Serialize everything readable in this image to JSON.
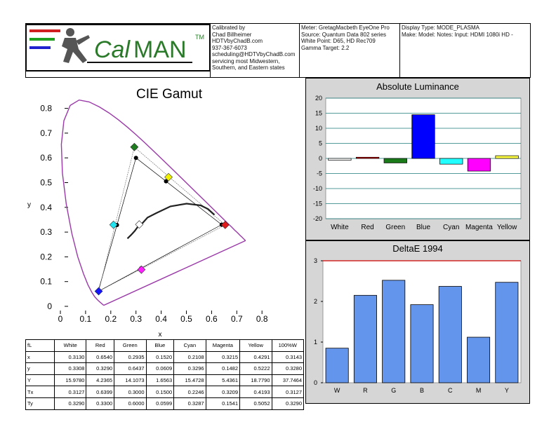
{
  "header": {
    "logo_text_cal": "Cal",
    "logo_text_man": "MAN",
    "logo_tm": "TM",
    "calibrated_by": "Calibrated by\nChad Billheimer\nHDTVbyChadB.com\n937-367-6073\nscheduling@HDTVbyChadB.com\nservicing most Midwestern,\nSouthern, and Eastern states",
    "meter_info": "Meter: GretagMacbeth EyeOne Pro\nSource: Quantum Data 802 series\nWhite Point: D65, HD Rec709\nGamma Target: 2.2",
    "display_info": "Display Type: MODE_PLASMA\nMake: Model: Notes: Input: HDMI 1080i HD   -"
  },
  "cie_chart": {
    "title": "CIE Gamut",
    "x_label": "x",
    "y_label": "y",
    "x_ticks": [
      "0",
      "0.1",
      "0.2",
      "0.3",
      "0.4",
      "0.5",
      "0.6",
      "0.7",
      "0.8"
    ],
    "y_ticks": [
      "0",
      "0.1",
      "0.2",
      "0.3",
      "0.4",
      "0.5",
      "0.6",
      "0.7",
      "0.8"
    ]
  },
  "lum_chart": {
    "title": "Absolute Luminance",
    "y_ticks": [
      "20",
      "15",
      "10",
      "5",
      "0",
      "-5",
      "-10",
      "-15",
      "-20"
    ],
    "categories": [
      "White",
      "Red",
      "Green",
      "Blue",
      "Cyan",
      "Magenta",
      "Yellow"
    ]
  },
  "de_chart": {
    "title": "DeltaE 1994",
    "y_ticks": [
      "3",
      "2",
      "1",
      "0"
    ],
    "categories": [
      "W",
      "R",
      "G",
      "B",
      "C",
      "M",
      "Y"
    ]
  },
  "chart_data": [
    {
      "type": "scatter",
      "title": "CIE Gamut",
      "xlabel": "x",
      "ylabel": "y",
      "xlim": [
        0,
        0.85
      ],
      "ylim": [
        0,
        0.85
      ],
      "spectral_locus": [
        [
          0.1741,
          0.005
        ],
        [
          0.1738,
          0.0049
        ],
        [
          0.1736,
          0.0049
        ],
        [
          0.1733,
          0.0048
        ],
        [
          0.173,
          0.0048
        ],
        [
          0.1726,
          0.0048
        ],
        [
          0.1721,
          0.0048
        ],
        [
          0.1714,
          0.0051
        ],
        [
          0.1703,
          0.0058
        ],
        [
          0.1689,
          0.0069
        ],
        [
          0.1669,
          0.0086
        ],
        [
          0.1644,
          0.0109
        ],
        [
          0.1611,
          0.0138
        ],
        [
          0.1566,
          0.0177
        ],
        [
          0.151,
          0.0227
        ],
        [
          0.144,
          0.0297
        ],
        [
          0.1355,
          0.0399
        ],
        [
          0.1241,
          0.0578
        ],
        [
          0.1096,
          0.0868
        ],
        [
          0.0913,
          0.1327
        ],
        [
          0.0687,
          0.2007
        ],
        [
          0.0454,
          0.295
        ],
        [
          0.0235,
          0.4127
        ],
        [
          0.0082,
          0.5384
        ],
        [
          0.0039,
          0.6548
        ],
        [
          0.0139,
          0.7502
        ],
        [
          0.0389,
          0.812
        ],
        [
          0.0743,
          0.8338
        ],
        [
          0.1142,
          0.8262
        ],
        [
          0.1547,
          0.8059
        ],
        [
          0.1929,
          0.7816
        ],
        [
          0.2296,
          0.7543
        ],
        [
          0.2658,
          0.7243
        ],
        [
          0.3016,
          0.6923
        ],
        [
          0.3373,
          0.6589
        ],
        [
          0.3731,
          0.6245
        ],
        [
          0.4087,
          0.5896
        ],
        [
          0.4441,
          0.5547
        ],
        [
          0.4788,
          0.5202
        ],
        [
          0.5125,
          0.4866
        ],
        [
          0.5448,
          0.4544
        ],
        [
          0.5752,
          0.4242
        ],
        [
          0.6029,
          0.3965
        ],
        [
          0.627,
          0.3725
        ],
        [
          0.6482,
          0.3514
        ],
        [
          0.6658,
          0.334
        ],
        [
          0.6801,
          0.3197
        ],
        [
          0.6915,
          0.3083
        ],
        [
          0.7006,
          0.2993
        ],
        [
          0.7079,
          0.292
        ],
        [
          0.714,
          0.2859
        ],
        [
          0.719,
          0.2809
        ],
        [
          0.723,
          0.277
        ],
        [
          0.726,
          0.274
        ],
        [
          0.7283,
          0.2717
        ],
        [
          0.73,
          0.27
        ],
        [
          0.7311,
          0.2689
        ],
        [
          0.732,
          0.268
        ],
        [
          0.7327,
          0.2673
        ],
        [
          0.7334,
          0.2666
        ],
        [
          0.734,
          0.266
        ],
        [
          0.7344,
          0.2656
        ],
        [
          0.7346,
          0.2654
        ],
        [
          0.7347,
          0.2653
        ]
      ],
      "target_points": [
        {
          "name": "R",
          "x": 0.64,
          "y": 0.33
        },
        {
          "name": "G",
          "x": 0.3,
          "y": 0.6
        },
        {
          "name": "B",
          "x": 0.15,
          "y": 0.06
        },
        {
          "name": "C",
          "x": 0.2246,
          "y": 0.3287
        },
        {
          "name": "M",
          "x": 0.3209,
          "y": 0.1541
        },
        {
          "name": "Y",
          "x": 0.4193,
          "y": 0.5052
        },
        {
          "name": "W",
          "x": 0.3127,
          "y": 0.329
        }
      ],
      "measured_points": [
        {
          "name": "R",
          "x": 0.654,
          "y": 0.329,
          "color": "#e0191b"
        },
        {
          "name": "G",
          "x": 0.2935,
          "y": 0.6437,
          "color": "#1e7d1e"
        },
        {
          "name": "B",
          "x": 0.152,
          "y": 0.0609,
          "color": "#1414ff"
        },
        {
          "name": "C",
          "x": 0.2108,
          "y": 0.3296,
          "color": "#22e4f0"
        },
        {
          "name": "M",
          "x": 0.3215,
          "y": 0.1482,
          "color": "#ff1eff"
        },
        {
          "name": "Y",
          "x": 0.4291,
          "y": 0.5222,
          "color": "#f0f000"
        },
        {
          "name": "W",
          "x": 0.313,
          "y": 0.3308,
          "color": "#ffffff"
        }
      ],
      "planckian": [
        [
          0.266,
          0.274
        ],
        [
          0.2806,
          0.2883
        ],
        [
          0.2952,
          0.3048
        ],
        [
          0.3128,
          0.3292
        ],
        [
          0.3221,
          0.3318
        ],
        [
          0.3457,
          0.3585
        ],
        [
          0.3805,
          0.3768
        ],
        [
          0.4369,
          0.4041
        ],
        [
          0.5008,
          0.4151
        ],
        [
          0.5565,
          0.408
        ],
        [
          0.5857,
          0.3931
        ],
        [
          0.6113,
          0.3698
        ]
      ]
    },
    {
      "type": "bar",
      "title": "Absolute Luminance",
      "categories": [
        "White",
        "Red",
        "Green",
        "Blue",
        "Cyan",
        "Magenta",
        "Yellow"
      ],
      "values": [
        -0.6,
        0.4,
        -1.5,
        14.5,
        -1.9,
        -4.2,
        0.9
      ],
      "colors": [
        "#ffffff",
        "#e00000",
        "#1a7a1a",
        "#0000ff",
        "#22ffff",
        "#ff00ff",
        "#ffff44"
      ],
      "ylim": [
        -20,
        20
      ]
    },
    {
      "type": "bar",
      "title": "DeltaE 1994",
      "categories": [
        "W",
        "R",
        "G",
        "B",
        "C",
        "M",
        "Y"
      ],
      "values": [
        0.85,
        2.15,
        2.52,
        1.92,
        2.37,
        1.12,
        2.47
      ],
      "threshold": 3,
      "ylim": [
        0,
        3
      ]
    }
  ],
  "table": {
    "headers": [
      "fL",
      "White",
      "Red",
      "Green",
      "Blue",
      "Cyan",
      "Magenta",
      "Yellow",
      "100%W"
    ],
    "rows": [
      [
        "x",
        "0.3130",
        "0.6540",
        "0.2935",
        "0.1520",
        "0.2108",
        "0.3215",
        "0.4291",
        "0.3143"
      ],
      [
        "y",
        "0.3308",
        "0.3290",
        "0.6437",
        "0.0609",
        "0.3296",
        "0.1482",
        "0.5222",
        "0.3280"
      ],
      [
        "Y",
        "15.9780",
        "4.2365",
        "14.1073",
        "1.6563",
        "15.4728",
        "5.4361",
        "18.7790",
        "37.7464"
      ],
      [
        "Tx",
        "0.3127",
        "0.6399",
        "0.3000",
        "0.1500",
        "0.2246",
        "0.3209",
        "0.4193",
        "0.3127"
      ],
      [
        "Ty",
        "0.3290",
        "0.3300",
        "0.6000",
        "0.0599",
        "0.3287",
        "0.1541",
        "0.5052",
        "0.3290"
      ]
    ]
  }
}
